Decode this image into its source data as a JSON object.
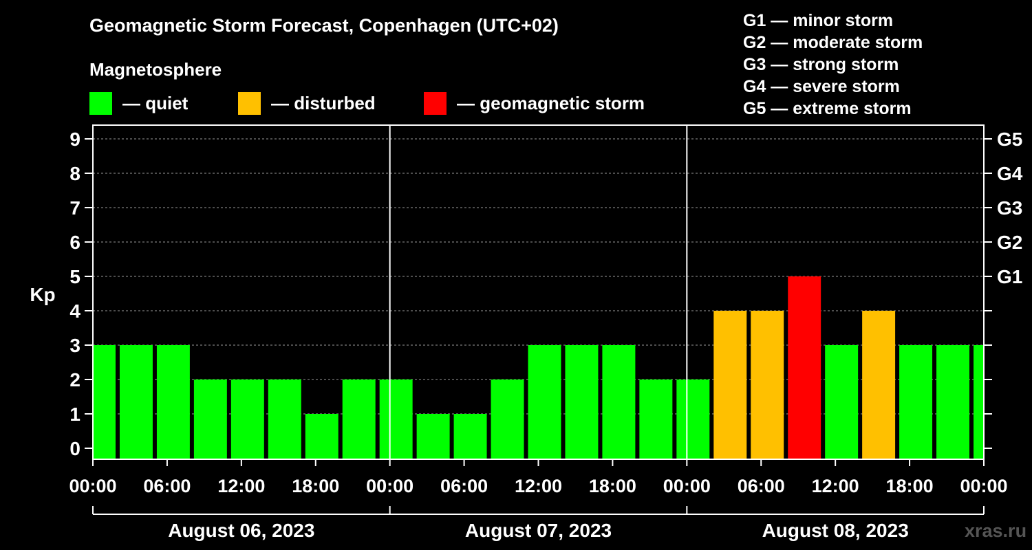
{
  "header": {
    "title": "Geomagnetic Storm Forecast, Copenhagen (UTC+02)",
    "subtitle": "Magnetosphere"
  },
  "legend": [
    {
      "label": "— quiet",
      "color": "#00ff00"
    },
    {
      "label": "— disturbed",
      "color": "#ffc000"
    },
    {
      "label": "— geomagnetic storm",
      "color": "#ff0000"
    }
  ],
  "storm_levels": [
    "G1 — minor storm",
    "G2 — moderate storm",
    "G3 — strong storm",
    "G4 — severe storm",
    "G5 — extreme storm"
  ],
  "watermark": "xras.ru",
  "chart_data": {
    "type": "bar",
    "title": "Geomagnetic Storm Forecast, Copenhagen (UTC+02)",
    "ylabel": "Kp",
    "ylim": [
      0,
      9
    ],
    "yticks": [
      0,
      1,
      2,
      3,
      4,
      5,
      6,
      7,
      8,
      9
    ],
    "right_axis": [
      {
        "kp": 5,
        "label": "G1"
      },
      {
        "kp": 6,
        "label": "G2"
      },
      {
        "kp": 7,
        "label": "G3"
      },
      {
        "kp": 8,
        "label": "G4"
      },
      {
        "kp": 9,
        "label": "G5"
      }
    ],
    "x_range_hours": [
      0,
      72
    ],
    "bar_interval_hours": 3,
    "first_bar_start_hour": -1,
    "xtick_labels": [
      "00:00",
      "06:00",
      "12:00",
      "18:00",
      "00:00",
      "06:00",
      "12:00",
      "18:00",
      "00:00",
      "06:00",
      "12:00",
      "18:00",
      "00:00"
    ],
    "days": [
      "August 06, 2023",
      "August 07, 2023",
      "August 08, 2023"
    ],
    "values": [
      3,
      3,
      3,
      2,
      2,
      2,
      1,
      2,
      2,
      1,
      1,
      2,
      3,
      3,
      3,
      2,
      2,
      4,
      4,
      5,
      3,
      4,
      3,
      3,
      3
    ],
    "colors": {
      "quiet": "#00ff00",
      "disturbed": "#ffc000",
      "storm": "#ff0000"
    },
    "thresholds": {
      "disturbed": 4,
      "storm": 5
    }
  }
}
